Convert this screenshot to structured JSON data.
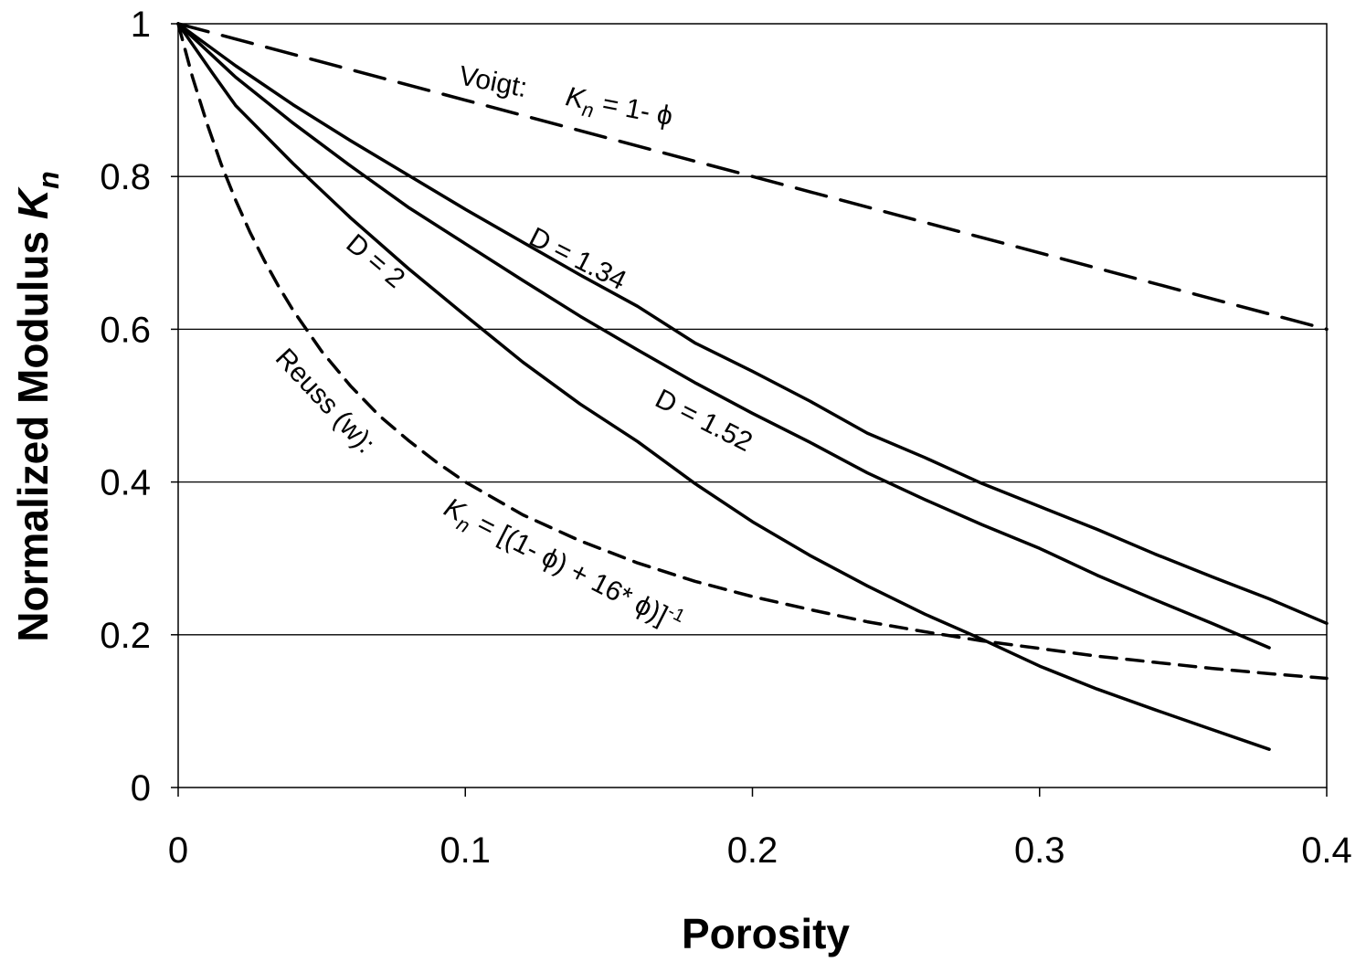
{
  "chart_data": {
    "type": "line",
    "title": "",
    "xlabel": "Porosity",
    "ylabel_main": "Normalized Modulus ",
    "ylabel_symbol": "K",
    "ylabel_subscript": "n",
    "xlim": [
      0,
      0.4
    ],
    "ylim": [
      0,
      1
    ],
    "grid": "horizontal",
    "x_ticks": [
      {
        "value": 0,
        "label": "0"
      },
      {
        "value": 0.1,
        "label": "0.1"
      },
      {
        "value": 0.2,
        "label": "0.2"
      },
      {
        "value": 0.3,
        "label": "0.3"
      },
      {
        "value": 0.4,
        "label": "0.4"
      }
    ],
    "y_ticks": [
      {
        "value": 0,
        "label": "0"
      },
      {
        "value": 0.2,
        "label": "0.2"
      },
      {
        "value": 0.4,
        "label": "0.4"
      },
      {
        "value": 0.6,
        "label": "0.6"
      },
      {
        "value": 0.8,
        "label": "0.8"
      },
      {
        "value": 1,
        "label": "1"
      }
    ],
    "series": [
      {
        "name": "Voigt",
        "style": "long-dash",
        "x": [
          0,
          0.4
        ],
        "y": [
          1,
          0.6
        ]
      },
      {
        "name": "D = 1.34",
        "style": "solid",
        "x": [
          0,
          0.02,
          0.04,
          0.06,
          0.08,
          0.1,
          0.12,
          0.14,
          0.16,
          0.18,
          0.2,
          0.22,
          0.24,
          0.26,
          0.28,
          0.3,
          0.32,
          0.34,
          0.36,
          0.38,
          0.4
        ],
        "y": [
          1,
          0.945,
          0.894,
          0.847,
          0.802,
          0.757,
          0.714,
          0.671,
          0.63,
          0.582,
          0.545,
          0.506,
          0.464,
          0.432,
          0.398,
          0.368,
          0.338,
          0.306,
          0.276,
          0.247,
          0.215
        ]
      },
      {
        "name": "D = 1.52",
        "style": "solid",
        "x": [
          0,
          0.02,
          0.04,
          0.06,
          0.08,
          0.1,
          0.12,
          0.14,
          0.16,
          0.18,
          0.2,
          0.22,
          0.24,
          0.26,
          0.28,
          0.3,
          0.32,
          0.34,
          0.36,
          0.38
        ],
        "y": [
          1,
          0.93,
          0.87,
          0.814,
          0.76,
          0.712,
          0.664,
          0.617,
          0.573,
          0.53,
          0.49,
          0.452,
          0.412,
          0.377,
          0.344,
          0.313,
          0.278,
          0.246,
          0.215,
          0.183
        ]
      },
      {
        "name": "D = 2",
        "style": "solid",
        "x": [
          0,
          0.012,
          0.02,
          0.04,
          0.06,
          0.08,
          0.1,
          0.12,
          0.14,
          0.16,
          0.18,
          0.2,
          0.22,
          0.24,
          0.26,
          0.28,
          0.3,
          0.32,
          0.34,
          0.36,
          0.38
        ],
        "y": [
          1,
          0.935,
          0.893,
          0.817,
          0.746,
          0.68,
          0.618,
          0.557,
          0.502,
          0.453,
          0.398,
          0.348,
          0.304,
          0.264,
          0.227,
          0.194,
          0.159,
          0.129,
          0.102,
          0.076,
          0.05
        ]
      },
      {
        "name": "Reuss (w)",
        "style": "short-dash",
        "x": [
          0,
          0.005,
          0.01,
          0.015,
          0.02,
          0.025,
          0.03,
          0.035,
          0.04,
          0.05,
          0.06,
          0.07,
          0.08,
          0.09,
          0.1,
          0.12,
          0.14,
          0.16,
          0.18,
          0.2,
          0.22,
          0.24,
          0.26,
          0.28,
          0.3,
          0.32,
          0.34,
          0.36,
          0.38,
          0.4
        ],
        "y": [
          1,
          0.93,
          0.87,
          0.816,
          0.769,
          0.727,
          0.69,
          0.656,
          0.625,
          0.571,
          0.526,
          0.487,
          0.455,
          0.426,
          0.4,
          0.357,
          0.323,
          0.294,
          0.27,
          0.25,
          0.233,
          0.217,
          0.204,
          0.192,
          0.182,
          0.172,
          0.164,
          0.156,
          0.149,
          0.143
        ]
      }
    ],
    "annotations": {
      "voigt_label": "Voigt:",
      "voigt_eq_symbol": "K",
      "voigt_eq_subscript": "n",
      "voigt_eq_rest": " = 1- ϕ",
      "d134": "D = 1.34",
      "d152": "D = 1.52",
      "d2": "D = 2",
      "reuss_label": "Reuss (w):",
      "reuss_eq_symbol": "K",
      "reuss_eq_subscript": "n",
      "reuss_eq_rest": " = [(1- ϕ) + 16* ϕ)]",
      "reuss_eq_superscript": "-1"
    }
  }
}
